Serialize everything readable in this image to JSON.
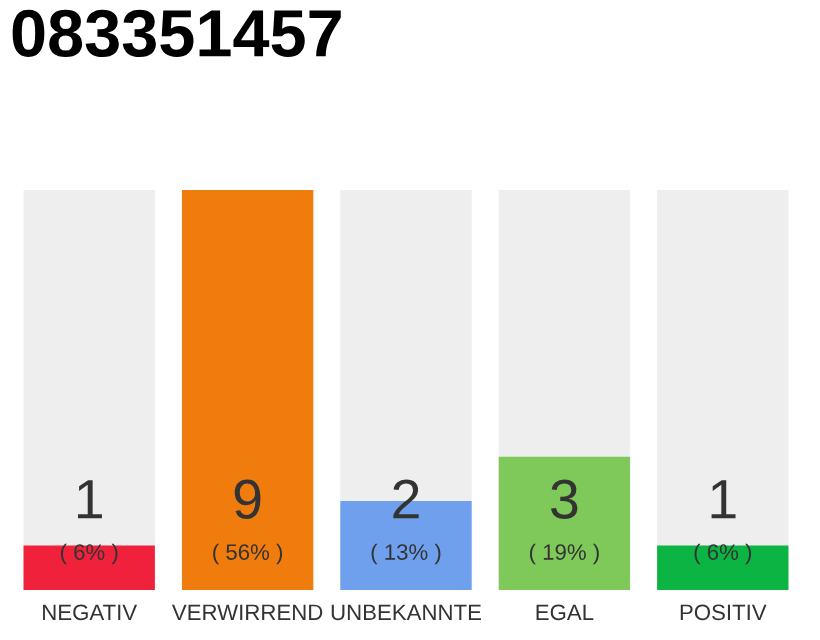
{
  "chart_data": {
    "type": "bar",
    "title": "083351457",
    "categories": [
      "NEGATIV",
      "VERWIRREND",
      "UNBEKANNTE",
      "EGAL",
      "POSITIV"
    ],
    "values": [
      1,
      9,
      2,
      3,
      1
    ],
    "colors": [
      "#f0213b",
      "#f07c0d",
      "#6ea0ee",
      "#7ec95a",
      "#0bb443"
    ],
    "data_labels": true,
    "annotations": [
      "( 6% )",
      "( 56% )",
      "( 13% )",
      "( 19% )",
      "( 6% )"
    ],
    "grid": false,
    "legend": false
  }
}
